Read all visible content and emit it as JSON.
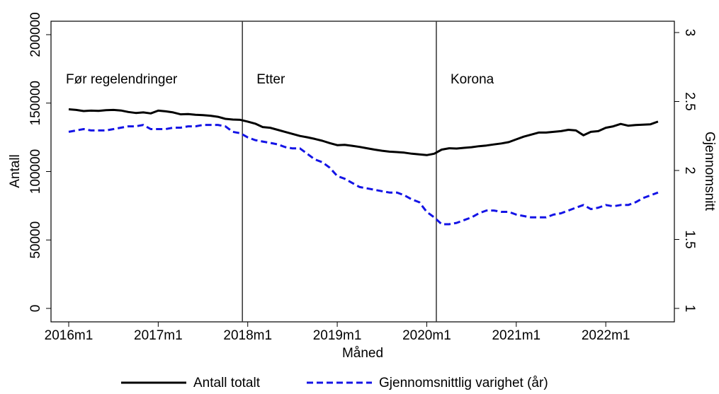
{
  "chart_data": {
    "type": "line",
    "xlabel": "Måned",
    "ylabel": "Antall",
    "y2label": "Gjennomsnitt",
    "categories": [
      "2016m1",
      null,
      null,
      null,
      null,
      null,
      null,
      null,
      null,
      null,
      null,
      null,
      "2017m1",
      null,
      null,
      null,
      null,
      null,
      null,
      null,
      null,
      null,
      null,
      null,
      "2018m1",
      null,
      null,
      null,
      null,
      null,
      null,
      null,
      null,
      null,
      null,
      null,
      "2019m1",
      null,
      null,
      null,
      null,
      null,
      null,
      null,
      null,
      null,
      null,
      null,
      "2020m1",
      null,
      null,
      null,
      null,
      null,
      null,
      null,
      null,
      null,
      null,
      null,
      "2021m1",
      null,
      null,
      null,
      null,
      null,
      null,
      null,
      null,
      null,
      null,
      null,
      "2022m1",
      null,
      null,
      null,
      null,
      null,
      null,
      null
    ],
    "series": [
      {
        "name": "Antall totalt",
        "color": "#000000",
        "dash": false,
        "values": [
          145500,
          145000,
          144200,
          144500,
          144300,
          144800,
          145000,
          144600,
          143500,
          142800,
          143200,
          142500,
          144500,
          144000,
          143200,
          141800,
          142000,
          141500,
          141200,
          140800,
          140000,
          138500,
          138000,
          137800,
          136500,
          135000,
          132500,
          132000,
          130500,
          129000,
          127500,
          126000,
          125000,
          123800,
          122500,
          120800,
          119300,
          119500,
          118800,
          118000,
          117000,
          116000,
          115200,
          114500,
          114200,
          113800,
          113000,
          112500,
          112000,
          113000,
          116000,
          117000,
          116800,
          117300,
          117800,
          118500,
          119000,
          119800,
          120500,
          121500,
          123500,
          125500,
          127000,
          128500,
          128500,
          129000,
          129500,
          130500,
          130000,
          126500,
          129000,
          129500,
          132000,
          133000,
          134800,
          133500,
          134000,
          134200,
          134500,
          136500
        ]
      },
      {
        "name": "Gjennomsnittlig varighet (år)",
        "color": "#1414e6",
        "dash": true,
        "axis": "y2",
        "values": [
          2.28,
          2.29,
          2.3,
          2.29,
          2.29,
          2.29,
          2.3,
          2.31,
          2.32,
          2.32,
          2.33,
          2.3,
          2.3,
          2.3,
          2.31,
          2.31,
          2.32,
          2.32,
          2.33,
          2.33,
          2.33,
          2.32,
          2.28,
          2.27,
          2.24,
          2.22,
          2.21,
          2.2,
          2.19,
          2.17,
          2.16,
          2.16,
          2.12,
          2.08,
          2.06,
          2.02,
          1.96,
          1.94,
          1.91,
          1.88,
          1.87,
          1.86,
          1.85,
          1.84,
          1.84,
          1.82,
          1.79,
          1.77,
          1.7,
          1.66,
          1.61,
          1.61,
          1.62,
          1.64,
          1.66,
          1.69,
          1.71,
          1.71,
          1.7,
          1.7,
          1.68,
          1.67,
          1.66,
          1.66,
          1.66,
          1.68,
          1.69,
          1.71,
          1.73,
          1.75,
          1.72,
          1.73,
          1.75,
          1.74,
          1.75,
          1.75,
          1.77,
          1.8,
          1.82,
          1.84
        ]
      }
    ],
    "ylim": [
      0,
      200000
    ],
    "yticks": [
      0,
      50000,
      100000,
      150000,
      200000
    ],
    "y2lim": [
      1,
      3
    ],
    "y2ticks": [
      1,
      1.5,
      2,
      2.5,
      3
    ],
    "vlines": [
      23,
      49
    ],
    "annotations": [
      "Før regelendringer",
      "Etter",
      "Korona"
    ],
    "legend": "bottom"
  }
}
